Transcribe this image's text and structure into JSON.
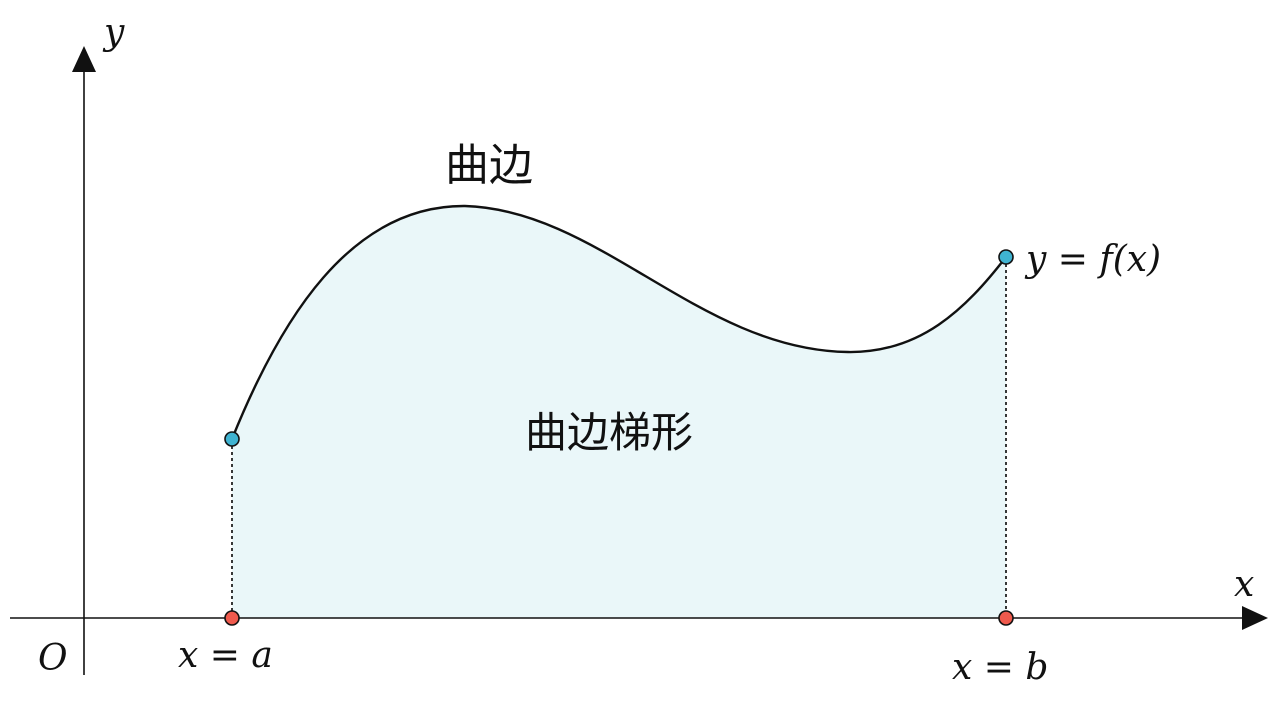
{
  "colors": {
    "fill": "#eaf7f9",
    "curve": "#111111",
    "axis": "#111111",
    "endpoint_curve": "#3fb3d1",
    "endpoint_axis": "#ef5a4d",
    "dotted": "#222222"
  },
  "labels": {
    "y_axis": "y",
    "x_axis": "x",
    "origin": "O",
    "curve_label": "曲边",
    "region_label": "曲边梯形",
    "function_label": "y = f(x)",
    "left_bound": "x = a",
    "right_bound": "x = b"
  }
}
